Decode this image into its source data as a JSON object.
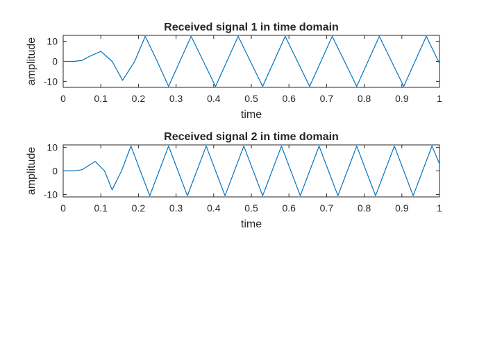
{
  "chart_data": [
    {
      "type": "line",
      "title": "Received signal 1 in time domain",
      "xlabel": "time",
      "ylabel": "amplitude",
      "xlim": [
        0,
        1
      ],
      "ylim": [
        -13,
        13
      ],
      "xticks": [
        0,
        0.1,
        0.2,
        0.3,
        0.4,
        0.5,
        0.6,
        0.7,
        0.8,
        0.9,
        1
      ],
      "xtick_labels": [
        "0",
        "0.1",
        "0.2",
        "0.3",
        "0.4",
        "0.5",
        "0.6",
        "0.7",
        "0.8",
        "0.9",
        "1"
      ],
      "yticks": [
        -10,
        0,
        10
      ],
      "ytick_labels": [
        "-10",
        "0",
        "10"
      ],
      "grid": false,
      "line_color": "#0072BD",
      "series": [
        {
          "x": [
            0,
            0.03,
            0.05,
            0.07,
            0.1,
            0.13,
            0.158,
            0.19,
            0.218,
            0.25,
            0.28,
            0.34,
            0.405,
            0.465,
            0.53,
            0.59,
            0.655,
            0.715,
            0.78,
            0.84,
            0.905,
            0.965,
            1
          ],
          "y": [
            0,
            0,
            0.5,
            2.5,
            5,
            0,
            -9.5,
            0,
            12.5,
            0,
            -12.5,
            12.5,
            -12.5,
            12.5,
            -12.5,
            12.5,
            -12.5,
            12.5,
            -12.5,
            12.5,
            -12.5,
            12.5,
            -1
          ]
        }
      ]
    },
    {
      "type": "line",
      "title": "Received signal 2 in time domain",
      "xlabel": "time",
      "ylabel": "amplitude",
      "xlim": [
        0,
        1
      ],
      "ylim": [
        -11,
        11
      ],
      "xticks": [
        0,
        0.1,
        0.2,
        0.3,
        0.4,
        0.5,
        0.6,
        0.7,
        0.8,
        0.9,
        1
      ],
      "xtick_labels": [
        "0",
        "0.1",
        "0.2",
        "0.3",
        "0.4",
        "0.5",
        "0.6",
        "0.7",
        "0.8",
        "0.9",
        "1"
      ],
      "yticks": [
        -10,
        0,
        10
      ],
      "ytick_labels": [
        "-10",
        "0",
        "10"
      ],
      "grid": false,
      "line_color": "#0072BD",
      "series": [
        {
          "x": [
            0,
            0.03,
            0.05,
            0.065,
            0.085,
            0.11,
            0.13,
            0.155,
            0.18,
            0.205,
            0.23,
            0.28,
            0.33,
            0.38,
            0.43,
            0.48,
            0.53,
            0.58,
            0.63,
            0.68,
            0.73,
            0.78,
            0.83,
            0.88,
            0.93,
            0.98,
            1
          ],
          "y": [
            0,
            0,
            0.5,
            2,
            4,
            0,
            -8,
            0,
            10.5,
            0,
            -10.5,
            10.5,
            -10.5,
            10.5,
            -10.5,
            10.5,
            -10.5,
            10.5,
            -10.5,
            10.5,
            -10.5,
            10.5,
            -10.5,
            10.5,
            -10.5,
            10.5,
            3
          ]
        }
      ]
    }
  ]
}
